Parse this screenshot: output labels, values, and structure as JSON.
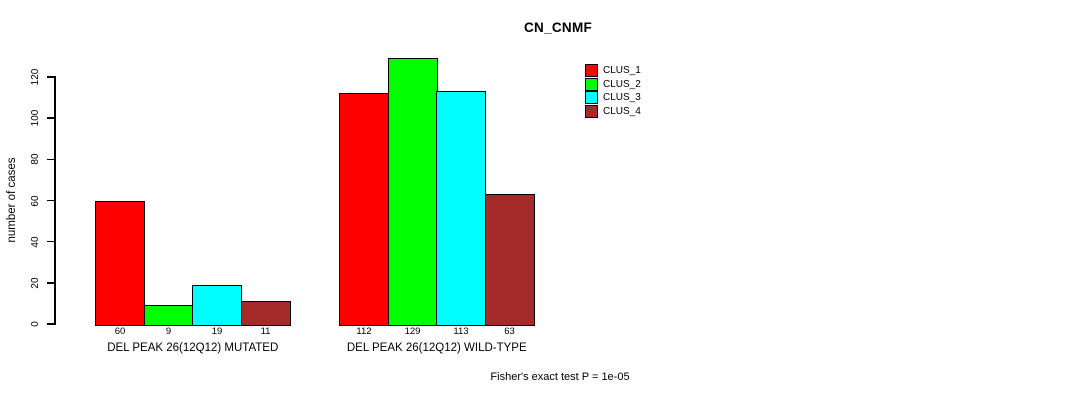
{
  "chart_data": {
    "type": "bar",
    "title": "CN_CNMF",
    "ylabel": "number of cases",
    "xlabel": "",
    "categories": [
      "DEL PEAK 26(12Q12) MUTATED",
      "DEL PEAK 26(12Q12) WILD-TYPE"
    ],
    "series": [
      {
        "name": "CLUS_1",
        "color": "#ff0000",
        "values": [
          60,
          112
        ]
      },
      {
        "name": "CLUS_2",
        "color": "#00ff00",
        "values": [
          9,
          129
        ]
      },
      {
        "name": "CLUS_3",
        "color": "#00ffff",
        "values": [
          19,
          113
        ]
      },
      {
        "name": "CLUS_4",
        "color": "#a52a2a",
        "values": [
          11,
          63
        ]
      }
    ],
    "yticks": [
      0,
      20,
      40,
      60,
      80,
      100,
      120
    ],
    "ylim": [
      0,
      130
    ],
    "grid": false,
    "show_values_under_bars": true,
    "legend": {
      "position": "top-right",
      "entries": [
        {
          "label": "CLUS_1",
          "color": "#ff0000"
        },
        {
          "label": "CLUS_2",
          "color": "#00ff00"
        },
        {
          "label": "CLUS_3",
          "color": "#00ffff"
        },
        {
          "label": "CLUS_4",
          "color": "#a52a2a"
        }
      ]
    },
    "annotation": "Fisher's exact test P = 1e-05",
    "axis_color": "#000000",
    "text_color": "#000000",
    "background_color": "#ffffff"
  }
}
